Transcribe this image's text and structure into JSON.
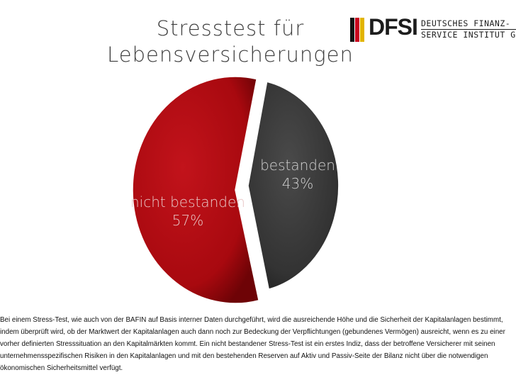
{
  "title": {
    "line1": "Stresstest für",
    "line2": "Lebensversicherungen"
  },
  "logo": {
    "abbr": "DFSI",
    "line1": "DEUTSCHES FINANZ-",
    "line2": "SERVICE INSTITUT GmbH"
  },
  "chart_data": {
    "type": "pie",
    "title": "Stresstest für Lebensversicherungen",
    "slices": [
      {
        "label": "bestanden",
        "value": 43,
        "value_label": "43%",
        "color": "#3a3a3a"
      },
      {
        "label": "nicht bestanden",
        "value": 57,
        "value_label": "57%",
        "color": "#b30a0f"
      }
    ]
  },
  "description": "Bei einem Stress-Test, wie auch von der BAFIN auf Basis interner Daten durchgeführt, wird die ausreichende Höhe und die Sicherheit der Kapitalanlagen bestimmt, indem überprüft wird, ob der Marktwert der Kapitalanlagen auch dann noch zur Bedeckung der Verpflichtungen (gebundenes Vermögen) ausreicht, wenn es zu einer vorher definierten Stresssituation an den Kapitalmärkten kommt. Ein nicht bestandener Stress-Test ist ein erstes Indiz, dass der betroffene Versicherer mit seinen unternehmensspezifischen Risiken in den Kapitalanlagen und mit den bestehenden Reserven auf Aktiv und Passiv-Seite der Bilanz nicht über die notwendigen ökonomischen Sicherheitsmittel verfügt."
}
